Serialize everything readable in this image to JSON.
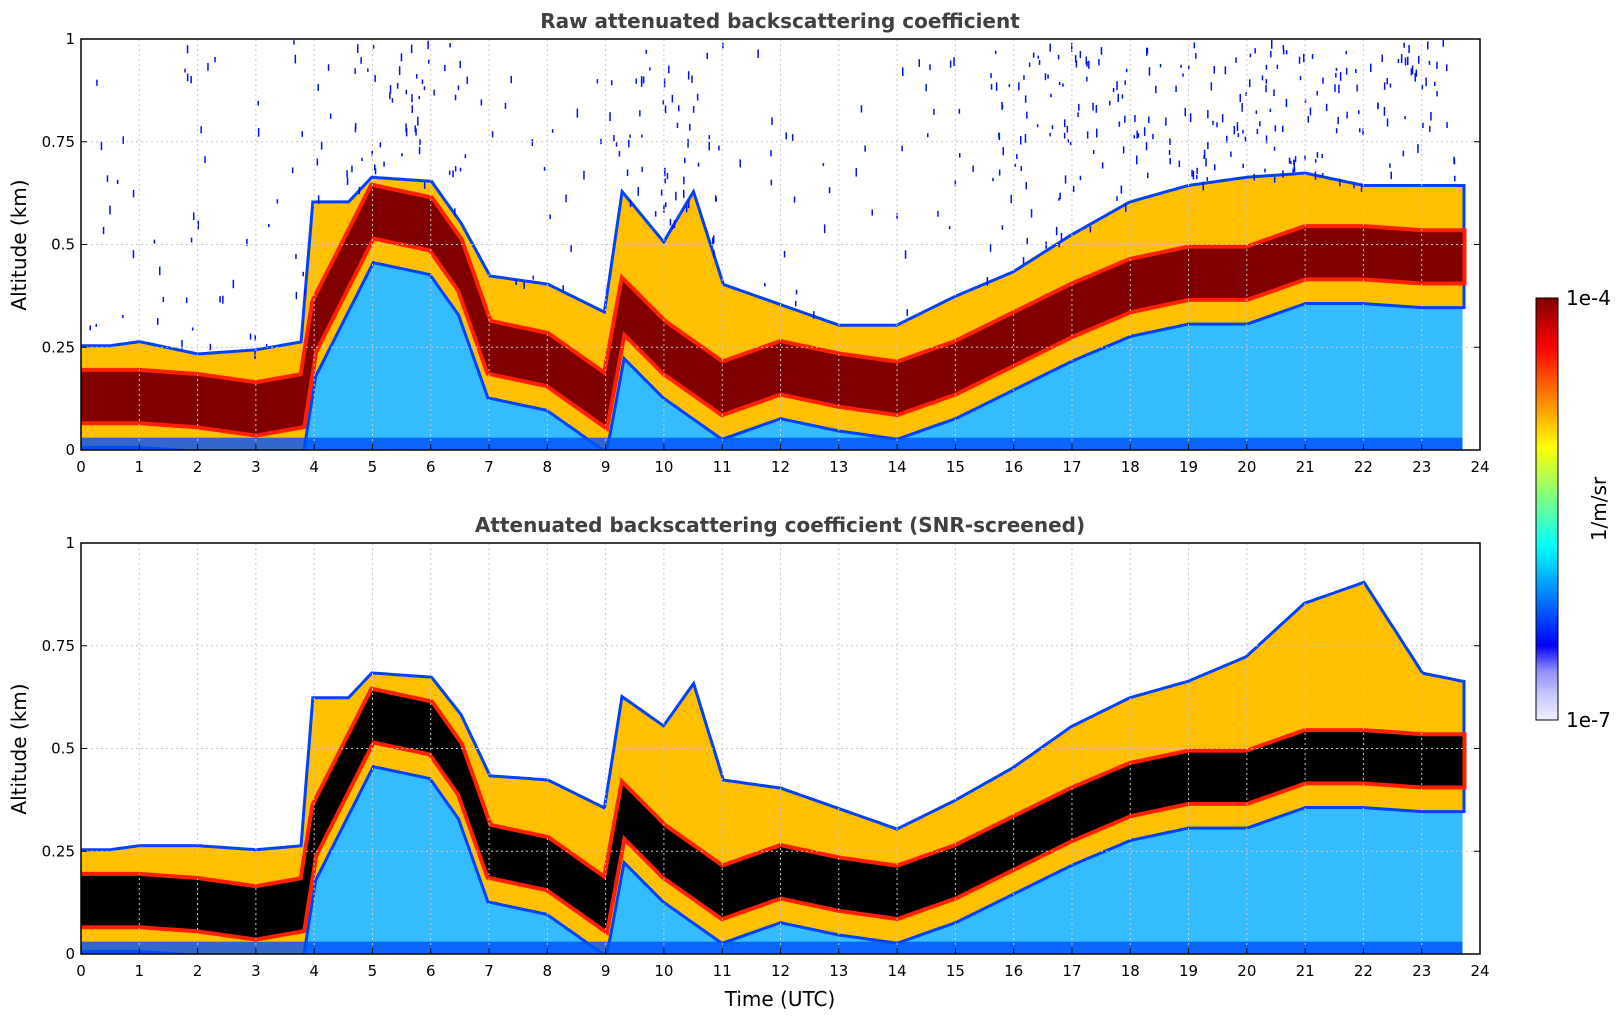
{
  "chart_data": [
    {
      "type": "heatmap",
      "title": "Raw attenuated backscattering coefficient",
      "xlabel": "",
      "ylabel": "Altitude (km)",
      "xlim": [
        0,
        24
      ],
      "ylim": [
        0,
        1
      ],
      "x_ticks": [
        "0",
        "1",
        "2",
        "3",
        "4",
        "5",
        "6",
        "7",
        "8",
        "9",
        "10",
        "11",
        "12",
        "13",
        "14",
        "15",
        "16",
        "17",
        "18",
        "19",
        "20",
        "21",
        "22",
        "23",
        "24"
      ],
      "y_ticks": [
        "0",
        "0.25",
        "0.5",
        "0.75",
        "1"
      ],
      "grid": true,
      "screened": false,
      "layer_top_km": [
        [
          0,
          0.25
        ],
        [
          0.5,
          0.25
        ],
        [
          1,
          0.26
        ],
        [
          2,
          0.23
        ],
        [
          3,
          0.24
        ],
        [
          3.8,
          0.26
        ],
        [
          4,
          0.6
        ],
        [
          4.6,
          0.6
        ],
        [
          5,
          0.66
        ],
        [
          6,
          0.65
        ],
        [
          6.5,
          0.55
        ],
        [
          7,
          0.42
        ],
        [
          8,
          0.4
        ],
        [
          9,
          0.33
        ],
        [
          9.3,
          0.62
        ],
        [
          10,
          0.5
        ],
        [
          10.5,
          0.62
        ],
        [
          11,
          0.4
        ],
        [
          12,
          0.35
        ],
        [
          13,
          0.3
        ],
        [
          14,
          0.3
        ],
        [
          15,
          0.37
        ],
        [
          16,
          0.43
        ],
        [
          17,
          0.52
        ],
        [
          18,
          0.6
        ],
        [
          19,
          0.64
        ],
        [
          20,
          0.66
        ],
        [
          21,
          0.67
        ],
        [
          22,
          0.64
        ],
        [
          23,
          0.64
        ],
        [
          23.7,
          0.64
        ]
      ],
      "layer_center_km": [
        [
          0,
          0.13
        ],
        [
          1,
          0.13
        ],
        [
          2,
          0.12
        ],
        [
          3,
          0.1
        ],
        [
          3.8,
          0.12
        ],
        [
          4,
          0.3
        ],
        [
          5,
          0.58
        ],
        [
          6,
          0.55
        ],
        [
          6.5,
          0.45
        ],
        [
          7,
          0.25
        ],
        [
          8,
          0.22
        ],
        [
          9,
          0.12
        ],
        [
          9.3,
          0.35
        ],
        [
          10,
          0.25
        ],
        [
          11,
          0.15
        ],
        [
          12,
          0.2
        ],
        [
          13,
          0.17
        ],
        [
          14,
          0.15
        ],
        [
          15,
          0.2
        ],
        [
          16,
          0.27
        ],
        [
          17,
          0.34
        ],
        [
          18,
          0.4
        ],
        [
          19,
          0.43
        ],
        [
          20,
          0.43
        ],
        [
          21,
          0.48
        ],
        [
          22,
          0.48
        ],
        [
          23,
          0.47
        ],
        [
          23.7,
          0.47
        ]
      ]
    },
    {
      "type": "heatmap",
      "title": "Attenuated backscattering coefficient (SNR-screened)",
      "xlabel": "Time (UTC)",
      "ylabel": "Altitude (km)",
      "xlim": [
        0,
        24
      ],
      "ylim": [
        0,
        1
      ],
      "x_ticks": [
        "0",
        "1",
        "2",
        "3",
        "4",
        "5",
        "6",
        "7",
        "8",
        "9",
        "10",
        "11",
        "12",
        "13",
        "14",
        "15",
        "16",
        "17",
        "18",
        "19",
        "20",
        "21",
        "22",
        "23",
        "24"
      ],
      "y_ticks": [
        "0",
        "0.25",
        "0.5",
        "0.75",
        "1"
      ],
      "grid": true,
      "screened": true,
      "layer_top_km": [
        [
          0,
          0.25
        ],
        [
          0.5,
          0.25
        ],
        [
          1,
          0.26
        ],
        [
          2,
          0.26
        ],
        [
          3,
          0.25
        ],
        [
          3.8,
          0.26
        ],
        [
          4,
          0.62
        ],
        [
          4.6,
          0.62
        ],
        [
          5,
          0.68
        ],
        [
          6,
          0.67
        ],
        [
          6.5,
          0.58
        ],
        [
          7,
          0.43
        ],
        [
          8,
          0.42
        ],
        [
          9,
          0.35
        ],
        [
          9.3,
          0.62
        ],
        [
          10,
          0.55
        ],
        [
          10.5,
          0.65
        ],
        [
          11,
          0.42
        ],
        [
          12,
          0.4
        ],
        [
          13,
          0.35
        ],
        [
          14,
          0.3
        ],
        [
          15,
          0.37
        ],
        [
          16,
          0.45
        ],
        [
          17,
          0.55
        ],
        [
          18,
          0.62
        ],
        [
          19,
          0.66
        ],
        [
          20,
          0.72
        ],
        [
          21,
          0.85
        ],
        [
          22,
          0.9
        ],
        [
          23,
          0.68
        ],
        [
          23.7,
          0.66
        ]
      ],
      "layer_center_km": [
        [
          0,
          0.13
        ],
        [
          1,
          0.13
        ],
        [
          2,
          0.12
        ],
        [
          3,
          0.1
        ],
        [
          3.8,
          0.12
        ],
        [
          4,
          0.3
        ],
        [
          5,
          0.58
        ],
        [
          6,
          0.55
        ],
        [
          6.5,
          0.45
        ],
        [
          7,
          0.25
        ],
        [
          8,
          0.22
        ],
        [
          9,
          0.12
        ],
        [
          9.3,
          0.35
        ],
        [
          10,
          0.25
        ],
        [
          11,
          0.15
        ],
        [
          12,
          0.2
        ],
        [
          13,
          0.17
        ],
        [
          14,
          0.15
        ],
        [
          15,
          0.2
        ],
        [
          16,
          0.27
        ],
        [
          17,
          0.34
        ],
        [
          18,
          0.4
        ],
        [
          19,
          0.43
        ],
        [
          20,
          0.43
        ],
        [
          21,
          0.48
        ],
        [
          22,
          0.48
        ],
        [
          23,
          0.47
        ],
        [
          23.7,
          0.47
        ]
      ]
    }
  ],
  "colorbar": {
    "max_label": "1e-4",
    "min_label": "1e-7",
    "unit_label": "1/m/sr",
    "scale": "log",
    "colors": [
      "#f0f0ff",
      "#c8c8ff",
      "#8c8cff",
      "#0000ff",
      "#0040ff",
      "#0080ff",
      "#00c0ff",
      "#00ffff",
      "#40ffc0",
      "#80ff80",
      "#c0ff40",
      "#ffff00",
      "#ffc000",
      "#ff8000",
      "#ff4000",
      "#ff0000",
      "#c00000",
      "#800000"
    ],
    "screened_saturation_color": "#000000"
  },
  "data_extent_hours": 23.7
}
